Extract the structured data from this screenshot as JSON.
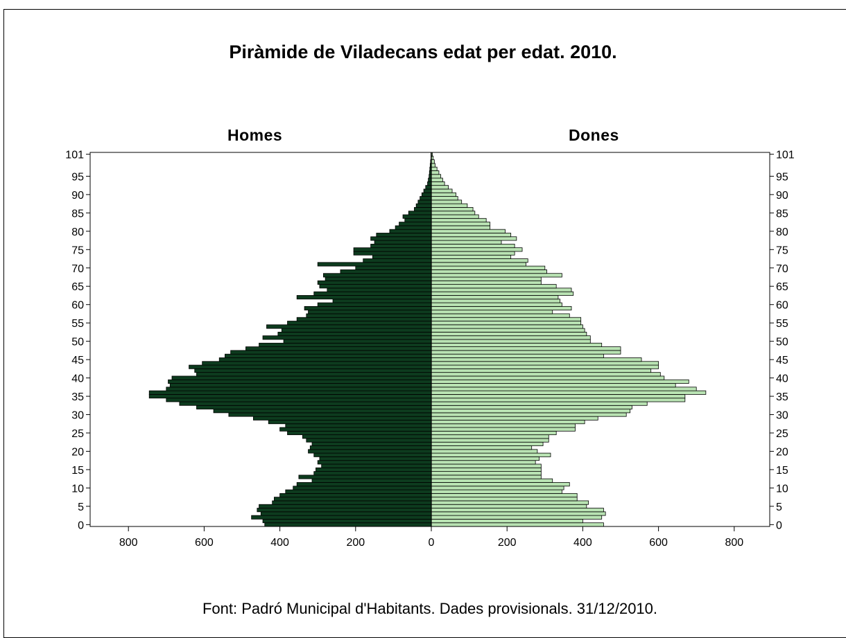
{
  "title": "Piràmide de Viladecans edat per edat. 2010.",
  "left_label": "Homes",
  "right_label": "Dones",
  "source": "Font: Padró Municipal d'Habitants. Dades provisionals. 31/12/2010.",
  "colors": {
    "men": "#0d3b1e",
    "women": "#b9e3b3",
    "bar_edge": "#000000"
  },
  "chart_data": {
    "type": "bar",
    "orientation": "horizontal-pyramid",
    "title": "Piràmide de Viladecans edat per edat. 2010.",
    "xlabel": "",
    "ylabel": "",
    "x_ticks": [
      800,
      600,
      400,
      200,
      0,
      200,
      400,
      600,
      800
    ],
    "xlim": [
      0,
      890
    ],
    "y_ticks": [
      0,
      5,
      10,
      15,
      20,
      25,
      30,
      35,
      40,
      45,
      50,
      55,
      60,
      65,
      70,
      75,
      80,
      85,
      90,
      95,
      101
    ],
    "ylim": [
      0,
      101
    ],
    "grid": false,
    "ages": [
      0,
      1,
      2,
      3,
      4,
      5,
      6,
      7,
      8,
      9,
      10,
      11,
      12,
      13,
      14,
      15,
      16,
      17,
      18,
      19,
      20,
      21,
      22,
      23,
      24,
      25,
      26,
      27,
      28,
      29,
      30,
      31,
      32,
      33,
      34,
      35,
      36,
      37,
      38,
      39,
      40,
      41,
      42,
      43,
      44,
      45,
      46,
      47,
      48,
      49,
      50,
      51,
      52,
      53,
      54,
      55,
      56,
      57,
      58,
      59,
      60,
      61,
      62,
      63,
      64,
      65,
      66,
      67,
      68,
      69,
      70,
      71,
      72,
      73,
      74,
      75,
      76,
      77,
      78,
      79,
      80,
      81,
      82,
      83,
      84,
      85,
      86,
      87,
      88,
      89,
      90,
      91,
      92,
      93,
      94,
      95,
      96,
      97,
      98,
      99,
      100,
      101
    ],
    "series": [
      {
        "name": "Homes",
        "values": [
          440,
          445,
          475,
          450,
          460,
          455,
          420,
          415,
          400,
          385,
          365,
          355,
          315,
          350,
          310,
          305,
          290,
          300,
          295,
          310,
          325,
          320,
          315,
          330,
          340,
          380,
          400,
          385,
          430,
          470,
          535,
          575,
          620,
          665,
          700,
          745,
          745,
          700,
          690,
          695,
          685,
          620,
          625,
          640,
          605,
          560,
          545,
          530,
          490,
          455,
          390,
          445,
          405,
          395,
          435,
          380,
          355,
          330,
          325,
          335,
          300,
          260,
          355,
          310,
          275,
          295,
          300,
          280,
          285,
          240,
          200,
          300,
          180,
          155,
          205,
          205,
          160,
          150,
          160,
          145,
          110,
          95,
          85,
          70,
          75,
          60,
          45,
          40,
          35,
          30,
          25,
          20,
          15,
          10,
          8,
          6,
          5,
          4,
          3,
          2,
          1,
          1
        ]
      },
      {
        "name": "Dones",
        "values": [
          455,
          400,
          450,
          460,
          455,
          410,
          415,
          385,
          385,
          345,
          350,
          365,
          320,
          290,
          290,
          290,
          290,
          275,
          285,
          315,
          280,
          265,
          295,
          310,
          310,
          330,
          380,
          380,
          405,
          440,
          515,
          525,
          530,
          570,
          670,
          670,
          725,
          700,
          645,
          680,
          615,
          605,
          580,
          600,
          600,
          555,
          455,
          500,
          500,
          450,
          420,
          420,
          410,
          405,
          400,
          395,
          395,
          365,
          320,
          370,
          345,
          340,
          335,
          375,
          370,
          330,
          290,
          290,
          345,
          305,
          300,
          250,
          255,
          210,
          220,
          240,
          220,
          185,
          225,
          210,
          195,
          155,
          155,
          145,
          125,
          115,
          110,
          95,
          80,
          70,
          65,
          55,
          45,
          35,
          30,
          25,
          20,
          15,
          10,
          8,
          5,
          3
        ]
      }
    ]
  }
}
